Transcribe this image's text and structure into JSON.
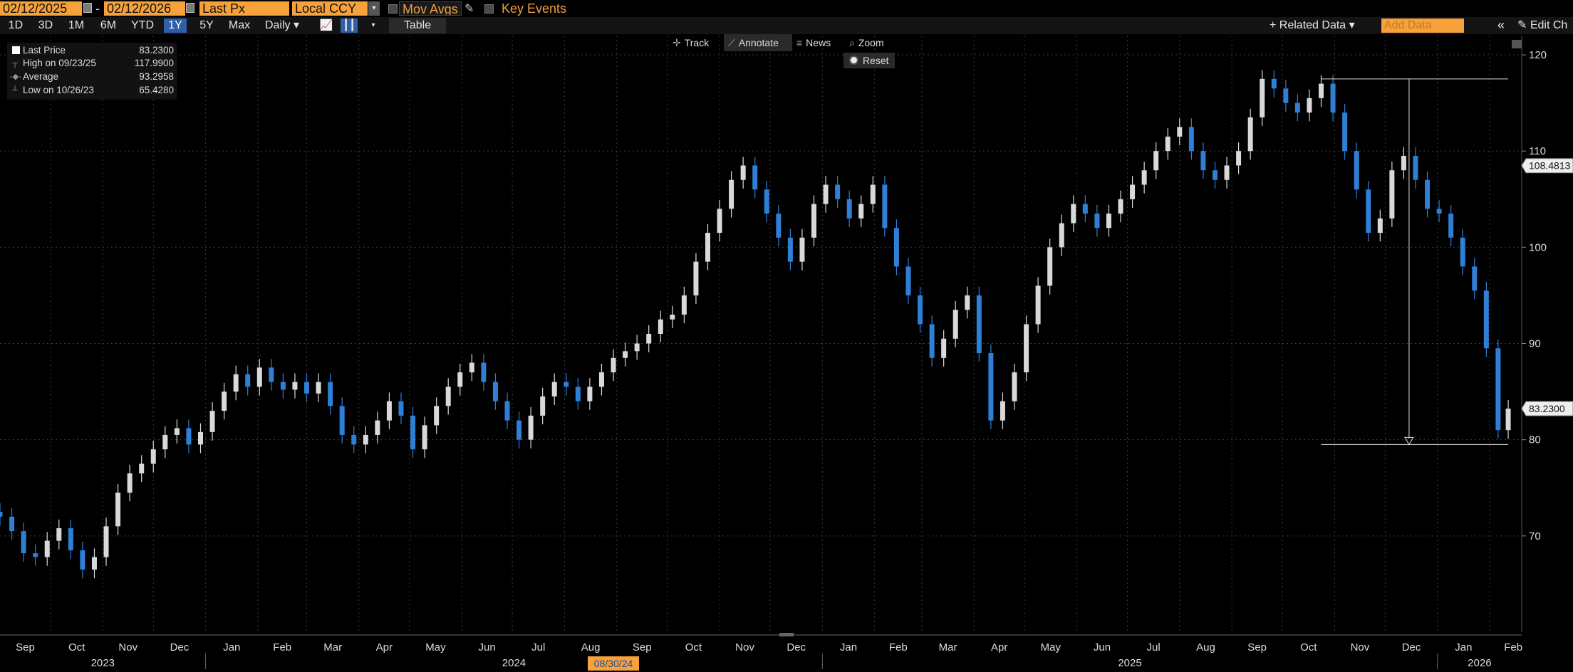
{
  "topbar": {
    "start_date": "02/12/2025",
    "end_date": "02/12/2026",
    "date_separator": "-",
    "field": "Last Px",
    "currency": "Local CCY",
    "mov_avgs": "Mov Avgs",
    "key_events": "Key Events"
  },
  "rangebar": {
    "ranges": [
      "1D",
      "3D",
      "1M",
      "6M",
      "YTD",
      "1Y",
      "5Y",
      "Max"
    ],
    "active_range": "1Y",
    "frequency": "Daily",
    "table": "Table",
    "related_data": "Related Data",
    "add_data_placeholder": "Add Data",
    "edit_chart": "Edit Ch"
  },
  "toolbar": {
    "track": "Track",
    "annotate": "Annotate",
    "news": "News",
    "zoom": "Zoom",
    "reset": "Reset"
  },
  "legend": {
    "last_price_label": "Last Price",
    "last_price_value": "83.2300",
    "high_label": "High on 09/23/25",
    "high_value": "117.9900",
    "average_label": "Average",
    "average_value": "93.2958",
    "low_label": "Low on 10/26/23",
    "low_value": "65.4280"
  },
  "colors": {
    "background": "#000000",
    "up_candle": "#d9d9d9",
    "down_candle": "#2e7fd6",
    "grid": "#3a3a3a",
    "accent": "#f7a13b"
  },
  "chart_data": {
    "type": "line",
    "note_style": "candlestick",
    "ylim": [
      60,
      122
    ],
    "yticks": [
      70,
      80,
      90,
      100,
      110,
      120
    ],
    "y_axis_labels": [
      "70",
      "80",
      "90",
      "100",
      "110",
      "120"
    ],
    "x_axis_labels": [
      "Sep",
      "Oct",
      "Nov",
      "Dec",
      "Jan",
      "Feb",
      "Mar",
      "Apr",
      "May",
      "Jun",
      "Jul",
      "Aug",
      "Sep",
      "Oct",
      "Nov",
      "Dec",
      "Jan",
      "Feb",
      "Mar",
      "Apr",
      "May",
      "Jun",
      "Jul",
      "Aug",
      "Sep",
      "Oct",
      "Nov",
      "Dec",
      "Jan",
      "Feb"
    ],
    "year_labels": [
      "2023",
      "2024",
      "2025",
      "2026"
    ],
    "cursor_date_label": "08/30/24",
    "last_price_tag": "83.2300",
    "mid_price_tag": "108.4813",
    "mid_price_tag_value": 108.4813,
    "grid": true,
    "series": [
      {
        "x": [
          "2023-09-01",
          "2023-09-08",
          "2023-09-15",
          "2023-09-22",
          "2023-09-29",
          "2023-10-06",
          "2023-10-13",
          "2023-10-20",
          "2023-10-27",
          "2023-11-03",
          "2023-11-10",
          "2023-11-17",
          "2023-11-24",
          "2023-12-01",
          "2023-12-08",
          "2023-12-15",
          "2023-12-22",
          "2023-12-29",
          "2024-01-05",
          "2024-01-12",
          "2024-01-19",
          "2024-01-26",
          "2024-02-02",
          "2024-02-09",
          "2024-02-16",
          "2024-02-23",
          "2024-03-01",
          "2024-03-08",
          "2024-03-15",
          "2024-03-22",
          "2024-03-29",
          "2024-04-05",
          "2024-04-12",
          "2024-04-19",
          "2024-04-26",
          "2024-05-03",
          "2024-05-10",
          "2024-05-17",
          "2024-05-24",
          "2024-05-31",
          "2024-06-07",
          "2024-06-14",
          "2024-06-21",
          "2024-06-28",
          "2024-07-05",
          "2024-07-12",
          "2024-07-19",
          "2024-07-26",
          "2024-08-02",
          "2024-08-09",
          "2024-08-16",
          "2024-08-23",
          "2024-08-30",
          "2024-09-06",
          "2024-09-13",
          "2024-09-20",
          "2024-09-27",
          "2024-10-04",
          "2024-10-11",
          "2024-10-18",
          "2024-10-25",
          "2024-11-01",
          "2024-11-08",
          "2024-11-15",
          "2024-11-22",
          "2024-11-29",
          "2024-12-06",
          "2024-12-13",
          "2024-12-20",
          "2024-12-27",
          "2025-01-03",
          "2025-01-10",
          "2025-01-17",
          "2025-01-24",
          "2025-01-31",
          "2025-02-07",
          "2025-02-14",
          "2025-02-21",
          "2025-02-28",
          "2025-03-07",
          "2025-03-14",
          "2025-03-21",
          "2025-03-28",
          "2025-04-04",
          "2025-04-11",
          "2025-04-18",
          "2025-04-25",
          "2025-05-02",
          "2025-05-09",
          "2025-05-16",
          "2025-05-23",
          "2025-05-30",
          "2025-06-06",
          "2025-06-13",
          "2025-06-20",
          "2025-06-27",
          "2025-07-04",
          "2025-07-11",
          "2025-07-18",
          "2025-07-25",
          "2025-08-01",
          "2025-08-08",
          "2025-08-15",
          "2025-08-22",
          "2025-08-29",
          "2025-09-05",
          "2025-09-12",
          "2025-09-19",
          "2025-09-26",
          "2025-10-03",
          "2025-10-10",
          "2025-10-17",
          "2025-10-24",
          "2025-10-31",
          "2025-11-07",
          "2025-11-14",
          "2025-11-21",
          "2025-11-28",
          "2025-12-05",
          "2025-12-12",
          "2025-12-19",
          "2025-12-26",
          "2026-01-02",
          "2026-01-09",
          "2026-01-16",
          "2026-01-23",
          "2026-01-30",
          "2026-02-06",
          "2026-02-12"
        ],
        "y": [
          72.0,
          70.5,
          68.2,
          67.8,
          69.5,
          70.8,
          68.5,
          66.5,
          67.8,
          71.0,
          74.5,
          76.5,
          77.5,
          79.0,
          80.5,
          81.2,
          79.5,
          80.8,
          83.0,
          85.0,
          86.8,
          85.5,
          87.5,
          86.0,
          85.2,
          86.0,
          84.8,
          86.0,
          83.5,
          80.5,
          79.5,
          80.5,
          82.0,
          84.0,
          82.5,
          79.0,
          81.5,
          83.5,
          85.5,
          87.0,
          88.0,
          86.0,
          84.0,
          82.0,
          80.0,
          82.5,
          84.5,
          86.0,
          85.5,
          84.0,
          85.5,
          87.0,
          88.5,
          89.2,
          90.0,
          91.0,
          92.5,
          93.0,
          95.0,
          98.5,
          101.5,
          104.0,
          107.0,
          108.5,
          106.0,
          103.5,
          101.0,
          98.5,
          101.0,
          104.5,
          106.5,
          105.0,
          103.0,
          104.5,
          106.5,
          102.0,
          98.0,
          95.0,
          92.0,
          88.5,
          90.5,
          93.5,
          95.0,
          89.0,
          82.0,
          84.0,
          87.0,
          92.0,
          96.0,
          100.0,
          102.5,
          104.5,
          103.5,
          102.0,
          103.5,
          105.0,
          106.5,
          108.0,
          110.0,
          111.5,
          112.5,
          110.0,
          108.0,
          107.0,
          108.5,
          110.0,
          113.5,
          117.5,
          116.5,
          115.0,
          114.0,
          115.5,
          117.0,
          114.0,
          110.0,
          106.0,
          101.5,
          103.0,
          108.0,
          109.5,
          107.0,
          104.0,
          103.5,
          101.0,
          98.0,
          95.5,
          89.5,
          81.0,
          83.23
        ]
      }
    ]
  }
}
